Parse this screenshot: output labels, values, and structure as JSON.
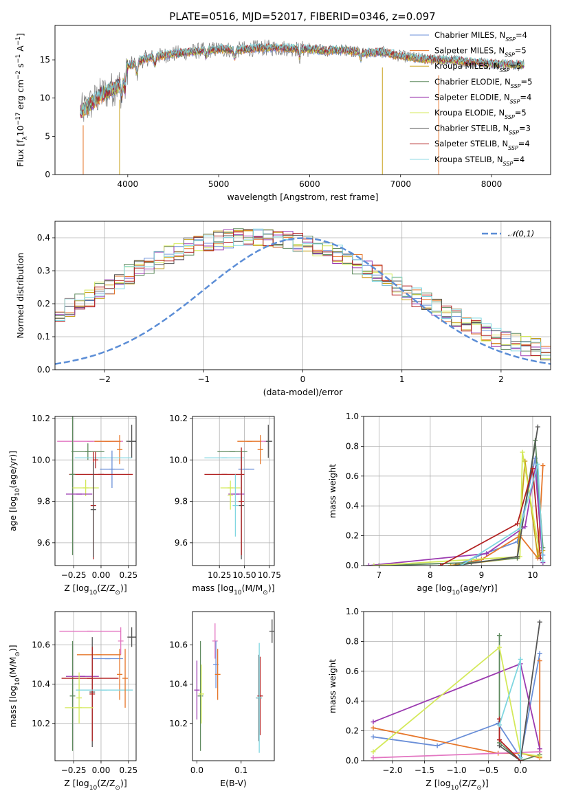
{
  "title": "PLATE=0516, MJD=52017, FIBERID=0346, z=0.097",
  "chart_data": [
    {
      "id": "spectrum",
      "type": "line",
      "xlabel": "wavelength [Angstrom, rest frame]",
      "ylabel": "Flux [fλ10⁻¹⁷ erg cm⁻² s⁻¹ A⁻¹]",
      "xlim": [
        3200,
        8650
      ],
      "ylim": [
        0,
        19.5
      ],
      "xticks": [
        4000,
        5000,
        6000,
        7000,
        8000
      ],
      "yticks": [
        0,
        5,
        10,
        15
      ],
      "grid": false,
      "legend_position": "upper right",
      "continuum": {
        "x": [
          3470,
          3520,
          3600,
          3700,
          3800,
          3900,
          3950,
          4000,
          4100,
          4200,
          4400,
          4600,
          4800,
          5000,
          5200,
          5400,
          5600,
          5800,
          6000,
          6200,
          6400,
          6600,
          6800,
          7000,
          7200,
          7400,
          7600,
          7800,
          8000,
          8200,
          8400
        ],
        "y": [
          8.2,
          8.5,
          9.3,
          10.4,
          11.0,
          11.6,
          12.6,
          14.2,
          14.6,
          15.2,
          15.6,
          15.9,
          16.2,
          16.4,
          16.3,
          16.5,
          16.6,
          16.5,
          16.4,
          16.2,
          16.3,
          15.9,
          16.0,
          15.5,
          15.2,
          15.0,
          14.9,
          14.7,
          14.5,
          14.4,
          14.3
        ]
      },
      "series": [
        {
          "name": "Chabrier MILES, N_SSP=4",
          "color": "#6a8fd8"
        },
        {
          "name": "Salpeter MILES, N_SSP=5",
          "color": "#e6762a"
        },
        {
          "name": "Kroupa MILES, N_SSP=5",
          "color": "#c9a21c"
        },
        {
          "name": "Chabrier ELODIE, N_SSP=5",
          "color": "#5e8a5e"
        },
        {
          "name": "Salpeter ELODIE, N_SSP=4",
          "color": "#9b3ab0"
        },
        {
          "name": "Kroupa ELODIE, N_SSP=5",
          "color": "#d4e95a"
        },
        {
          "name": "Chabrier STELIB, N_SSP=3",
          "color": "#555555"
        },
        {
          "name": "Salpeter STELIB, N_SSP=4",
          "color": "#b22222"
        },
        {
          "name": "Kroupa STELIB, N_SSP=4",
          "color": "#7fd6e0"
        }
      ]
    },
    {
      "id": "residuals",
      "type": "histogram",
      "xlabel": "(data-model)/error",
      "ylabel": "Normed distribution",
      "xlim": [
        -2.5,
        2.5
      ],
      "ylim": [
        0,
        0.45
      ],
      "xticks": [
        -2,
        -1,
        0,
        1,
        2
      ],
      "yticks": [
        0.0,
        0.1,
        0.2,
        0.3,
        0.4
      ],
      "grid": true,
      "legend_position": "upper right",
      "reference": {
        "name": "𝒩(0,1)",
        "color": "#5b8dd6",
        "style": "dashed"
      },
      "bin_width": 0.1,
      "base": [
        0.042,
        0.038,
        0.036,
        0.04,
        0.048,
        0.052,
        0.058,
        0.065,
        0.072,
        0.085,
        0.095,
        0.11,
        0.125,
        0.14,
        0.158,
        0.175,
        0.19,
        0.205,
        0.22,
        0.238,
        0.255,
        0.272,
        0.29,
        0.305,
        0.32,
        0.335,
        0.35,
        0.36,
        0.37,
        0.38,
        0.388,
        0.392,
        0.395,
        0.398,
        0.4,
        0.4,
        0.398,
        0.395,
        0.39,
        0.385,
        0.378,
        0.37,
        0.36,
        0.35,
        0.335,
        0.32,
        0.305,
        0.29,
        0.272,
        0.255,
        0.238,
        0.22,
        0.205,
        0.19,
        0.175,
        0.158,
        0.142,
        0.128,
        0.114,
        0.1,
        0.09,
        0.08,
        0.072,
        0.065,
        0.058,
        0.052,
        0.048,
        0.044,
        0.04,
        0.038,
        0.036,
        0.034,
        0.032,
        0.03,
        0.028,
        0.026,
        0.025,
        0.024,
        0.023,
        0.022
      ]
    },
    {
      "id": "age_vs_Z",
      "type": "errorbar",
      "xlabel": "Z [log₁₀(Z/Z⊙)]",
      "ylabel": "age  [log₁₀(age/yr)]",
      "xlim": [
        -0.42,
        0.32
      ],
      "ylim": [
        9.49,
        10.21
      ],
      "xticks": [
        -0.25,
        0.0,
        0.25
      ],
      "xticklabels": [
        "−0.25",
        "0.00",
        "0.25"
      ],
      "yticks": [
        9.6,
        9.8,
        10.0,
        10.2
      ],
      "grid": true,
      "points": [
        {
          "x": 0.28,
          "y": 10.09,
          "xerr": 0.05,
          "yerr": 0.08,
          "color": "#555555"
        },
        {
          "x": -0.1,
          "y": 10.09,
          "xerr": 0.3,
          "yerr": 0.0,
          "color": "#e377c2"
        },
        {
          "x": 0.06,
          "y": 10.09,
          "xerr": 0.12,
          "yerr": 0.0,
          "color": "#e6762a"
        },
        {
          "x": 0.17,
          "y": 10.05,
          "xerr": 0.0,
          "yerr": 0.07,
          "color": "#e6762a"
        },
        {
          "x": -0.12,
          "y": 10.04,
          "xerr": 0.15,
          "yerr": 0.04,
          "color": "#5e8a5e"
        },
        {
          "x": 0.02,
          "y": 10.01,
          "xerr": 0.26,
          "yerr": 0.0,
          "color": "#7fd6e0"
        },
        {
          "x": -0.05,
          "y": 10.0,
          "xerr": 0.0,
          "yerr": 0.04,
          "color": "#b22222"
        },
        {
          "x": 0.1,
          "y": 9.955,
          "xerr": 0.11,
          "yerr": 0.09,
          "color": "#6a8fd8"
        },
        {
          "x": 0.0,
          "y": 9.93,
          "xerr": 0.29,
          "yerr": 0.0,
          "color": "#b22222"
        },
        {
          "x": -0.26,
          "y": 9.93,
          "xerr": 0.0,
          "yerr": 0.39,
          "color": "#5e8a5e"
        },
        {
          "x": -0.14,
          "y": 9.865,
          "xerr": 0.12,
          "yerr": 0.04,
          "color": "#d4e95a"
        },
        {
          "x": -0.2,
          "y": 9.835,
          "xerr": 0.12,
          "yerr": 0.0,
          "color": "#9b3ab0"
        },
        {
          "x": -0.07,
          "y": 9.78,
          "xerr": 0.0,
          "yerr": 0.26,
          "color": "#b22222"
        },
        {
          "x": -0.07,
          "y": 9.76,
          "xerr": 0.0,
          "yerr": 0.23,
          "color": "#555555"
        }
      ]
    },
    {
      "id": "age_vs_mass",
      "type": "errorbar",
      "xlabel": "mass [log₁₀(M/M⊙)]",
      "ylabel": "",
      "xlim": [
        9.98,
        10.8
      ],
      "ylim": [
        9.49,
        10.21
      ],
      "xticks": [
        10.25,
        10.5,
        10.75
      ],
      "xticklabels": [
        "10.25",
        "10.50",
        "10.75"
      ],
      "yticks": [
        9.6,
        9.8,
        10.0,
        10.2
      ],
      "grid": true,
      "points": [
        {
          "x": 10.74,
          "y": 10.09,
          "xerr": 0.04,
          "yerr": 0.08,
          "color": "#555555"
        },
        {
          "x": 10.69,
          "y": 10.09,
          "xerr": 0.0,
          "yerr": 0.0,
          "color": "#e377c2"
        },
        {
          "x": 10.55,
          "y": 10.09,
          "xerr": 0.12,
          "yerr": 0.0,
          "color": "#e6762a"
        },
        {
          "x": 10.66,
          "y": 10.05,
          "xerr": 0.0,
          "yerr": 0.07,
          "color": "#e6762a"
        },
        {
          "x": 10.38,
          "y": 10.04,
          "xerr": 0.15,
          "yerr": 0.0,
          "color": "#5e8a5e"
        },
        {
          "x": 10.3,
          "y": 10.01,
          "xerr": 0.2,
          "yerr": 0.0,
          "color": "#7fd6e0"
        },
        {
          "x": 10.52,
          "y": 9.955,
          "xerr": 0.08,
          "yerr": 0.0,
          "color": "#6a8fd8"
        },
        {
          "x": 10.3,
          "y": 9.93,
          "xerr": 0.2,
          "yerr": 0.0,
          "color": "#b22222"
        },
        {
          "x": 10.36,
          "y": 9.865,
          "xerr": 0.1,
          "yerr": 0.0,
          "color": "#d4e95a"
        },
        {
          "x": 10.42,
          "y": 9.835,
          "xerr": 0.08,
          "yerr": 0.0,
          "color": "#9b3ab0"
        },
        {
          "x": 10.47,
          "y": 9.78,
          "xerr": 0.0,
          "yerr": 0.26,
          "color": "#555555"
        },
        {
          "x": 10.47,
          "y": 9.8,
          "xerr": 0.0,
          "yerr": 0.26,
          "color": "#b22222"
        },
        {
          "x": 10.36,
          "y": 9.83,
          "xerr": 0.0,
          "yerr": 0.07,
          "color": "#d4e95a"
        },
        {
          "x": 10.41,
          "y": 9.78,
          "xerr": 0.0,
          "yerr": 0.15,
          "color": "#7fd6e0"
        }
      ]
    },
    {
      "id": "weight_vs_age",
      "type": "line",
      "xlabel": "age  [log₁₀(age/yr)]",
      "ylabel": "mass weight",
      "xlim": [
        6.7,
        10.35
      ],
      "ylim": [
        0,
        1
      ],
      "xticks": [
        7,
        8,
        9,
        10
      ],
      "yticks": [
        0.0,
        0.2,
        0.4,
        0.6,
        0.8,
        1.0
      ],
      "grid": true,
      "series": [
        {
          "color": "#6a8fd8",
          "x": [
            8.5,
            8.9,
            9.7,
            10.05,
            10.2
          ],
          "y": [
            0.0,
            0.06,
            0.16,
            0.72,
            0.07
          ]
        },
        {
          "color": "#e6762a",
          "x": [
            8.4,
            9.0,
            9.75,
            10.1,
            10.2
          ],
          "y": [
            0.0,
            0.04,
            0.2,
            0.05,
            0.67
          ]
        },
        {
          "color": "#c9a21c",
          "x": [
            8.4,
            9.7,
            9.85,
            10.1,
            10.2
          ],
          "y": [
            0.0,
            0.05,
            0.7,
            0.06,
            0.1
          ]
        },
        {
          "color": "#5e8a5e",
          "x": [
            7.0,
            8.8,
            9.7,
            10.05,
            10.2
          ],
          "y": [
            0.0,
            0.02,
            0.05,
            0.84,
            0.12
          ]
        },
        {
          "color": "#9b3ab0",
          "x": [
            6.8,
            9.1,
            9.85,
            10.05,
            10.2
          ],
          "y": [
            0.0,
            0.08,
            0.26,
            0.65,
            0.02
          ]
        },
        {
          "color": "#d4e95a",
          "x": [
            6.9,
            9.75,
            9.8,
            10.15
          ],
          "y": [
            0.0,
            0.06,
            0.76,
            0.05
          ]
        },
        {
          "color": "#555555",
          "x": [
            8.5,
            9.7,
            10.1
          ],
          "y": [
            0.0,
            0.06,
            0.93
          ]
        },
        {
          "color": "#b22222",
          "x": [
            8.2,
            9.7,
            10.0,
            10.15
          ],
          "y": [
            0.0,
            0.28,
            0.65,
            0.05
          ]
        },
        {
          "color": "#7fd6e0",
          "x": [
            8.6,
            9.75,
            10.1,
            10.2
          ],
          "y": [
            0.0,
            0.25,
            0.68,
            0.03
          ]
        }
      ]
    },
    {
      "id": "mass_vs_Z",
      "type": "errorbar",
      "xlabel": "Z [log₁₀(Z/Z⊙)]",
      "ylabel": "mass [log₁₀(M/M⊙)]",
      "xlim": [
        -0.42,
        0.32
      ],
      "ylim": [
        10.01,
        10.77
      ],
      "xticks": [
        -0.25,
        0.0,
        0.25
      ],
      "xticklabels": [
        "−0.25",
        "0.00",
        "0.25"
      ],
      "yticks": [
        10.2,
        10.4,
        10.6
      ],
      "grid": true,
      "points": [
        {
          "x": 0.28,
          "y": 10.64,
          "xerr": 0.04,
          "yerr": 0.05,
          "color": "#555555"
        },
        {
          "x": -0.1,
          "y": 10.67,
          "xerr": 0.28,
          "yerr": 0.0,
          "color": "#e377c2"
        },
        {
          "x": 0.18,
          "y": 10.62,
          "xerr": 0.0,
          "yerr": 0.07,
          "color": "#e377c2"
        },
        {
          "x": -0.02,
          "y": 10.55,
          "xerr": 0.2,
          "yerr": 0.0,
          "color": "#e6762a"
        },
        {
          "x": 0.06,
          "y": 10.53,
          "xerr": 0.14,
          "yerr": 0.0,
          "color": "#6a8fd8"
        },
        {
          "x": 0.17,
          "y": 10.45,
          "xerr": 0.0,
          "yerr": 0.13,
          "color": "#e6762a"
        },
        {
          "x": -0.26,
          "y": 10.34,
          "xerr": 0.0,
          "yerr": 0.28,
          "color": "#5e8a5e"
        },
        {
          "x": -0.1,
          "y": 10.43,
          "xerr": 0.26,
          "yerr": 0.0,
          "color": "#b22222"
        },
        {
          "x": -0.17,
          "y": 10.44,
          "xerr": 0.15,
          "yerr": 0.0,
          "color": "#9b3ab0"
        },
        {
          "x": -0.08,
          "y": 10.36,
          "xerr": 0.0,
          "yerr": 0.28,
          "color": "#555555"
        },
        {
          "x": -0.08,
          "y": 10.35,
          "xerr": 0.0,
          "yerr": 0.24,
          "color": "#b22222"
        },
        {
          "x": -0.2,
          "y": 10.28,
          "xerr": 0.13,
          "yerr": 0.0,
          "color": "#d4e95a"
        },
        {
          "x": -0.2,
          "y": 10.33,
          "xerr": 0.0,
          "yerr": 0.13,
          "color": "#d4e95a"
        },
        {
          "x": 0.03,
          "y": 10.37,
          "xerr": 0.26,
          "yerr": 0.0,
          "color": "#7fd6e0"
        },
        {
          "x": 0.22,
          "y": 10.43,
          "xerr": 0.0,
          "yerr": 0.15,
          "color": "#e6762a"
        }
      ]
    },
    {
      "id": "mass_vs_ebv",
      "type": "errorbar",
      "xlabel": "E(B-V)",
      "ylabel": "",
      "xlim": [
        -0.01,
        0.175
      ],
      "ylim": [
        10.01,
        10.77
      ],
      "xticks": [
        0.0,
        0.1
      ],
      "xticklabels": [
        "0.0",
        "0.1"
      ],
      "yticks": [
        10.2,
        10.4,
        10.6
      ],
      "grid": false,
      "points": [
        {
          "x": 0.0,
          "y": 10.37,
          "xerr": 0.0,
          "yerr": 0.15,
          "color": "#9b3ab0"
        },
        {
          "x": 0.008,
          "y": 10.34,
          "xerr": 0.0,
          "yerr": 0.28,
          "color": "#5e8a5e"
        },
        {
          "x": 0.01,
          "y": 10.35,
          "xerr": 0.0,
          "yerr": 0.15,
          "color": "#d4e95a"
        },
        {
          "x": 0.041,
          "y": 10.62,
          "xerr": 0.0,
          "yerr": 0.09,
          "color": "#e377c2"
        },
        {
          "x": 0.043,
          "y": 10.5,
          "xerr": 0.0,
          "yerr": 0.12,
          "color": "#6a8fd8"
        },
        {
          "x": 0.047,
          "y": 10.45,
          "xerr": 0.0,
          "yerr": 0.13,
          "color": "#e6762a"
        },
        {
          "x": 0.14,
          "y": 10.33,
          "xerr": 0.0,
          "yerr": 0.22,
          "color": "#555555"
        },
        {
          "x": 0.143,
          "y": 10.34,
          "xerr": 0.0,
          "yerr": 0.2,
          "color": "#b22222"
        },
        {
          "x": 0.141,
          "y": 10.33,
          "xerr": 0.0,
          "yerr": 0.28,
          "color": "#7fd6e0"
        },
        {
          "x": 0.17,
          "y": 10.67,
          "xerr": 0.0,
          "yerr": 0.06,
          "color": "#555555"
        }
      ]
    },
    {
      "id": "weight_vs_Z",
      "type": "line",
      "xlabel": "Z [log₁₀(Z/Z⊙)]",
      "ylabel": "mass weight",
      "xlim": [
        -2.45,
        0.47
      ],
      "ylim": [
        0,
        1
      ],
      "xticks": [
        -2.0,
        -1.5,
        -1.0,
        -0.5,
        0.0
      ],
      "xticklabels": [
        "−2.0",
        "−1.5",
        "−1.0",
        "−0.5",
        "0.0"
      ],
      "yticks": [
        0.0,
        0.2,
        0.4,
        0.6,
        0.8,
        1.0
      ],
      "grid": true,
      "series": [
        {
          "color": "#6a8fd8",
          "x": [
            -2.3,
            -1.3,
            -0.35,
            0.0,
            0.3
          ],
          "y": [
            0.16,
            0.1,
            0.25,
            0.02,
            0.72
          ]
        },
        {
          "color": "#e6762a",
          "x": [
            -2.3,
            -0.35,
            0.0,
            0.3,
            0.3
          ],
          "y": [
            0.22,
            0.05,
            0.05,
            0.02,
            0.67
          ]
        },
        {
          "color": "#e377c2",
          "x": [
            -2.3,
            0.3,
            0.3
          ],
          "y": [
            0.02,
            0.06,
            0.08
          ]
        },
        {
          "color": "#5e8a5e",
          "x": [
            -0.33,
            -0.33,
            0.0,
            0.3
          ],
          "y": [
            0.84,
            0.12,
            0.0,
            0.04
          ]
        },
        {
          "color": "#9b3ab0",
          "x": [
            -2.3,
            0.0,
            0.3
          ],
          "y": [
            0.26,
            0.65,
            0.08
          ]
        },
        {
          "color": "#d4e95a",
          "x": [
            -2.3,
            -0.33,
            0.0,
            0.3
          ],
          "y": [
            0.06,
            0.76,
            0.05,
            0.03
          ]
        },
        {
          "color": "#555555",
          "x": [
            -0.33,
            0.0,
            0.3
          ],
          "y": [
            0.1,
            0.0,
            0.93
          ]
        },
        {
          "color": "#b22222",
          "x": [
            -0.33,
            -0.33,
            0.0
          ],
          "y": [
            0.28,
            0.14,
            0.0
          ]
        },
        {
          "color": "#7fd6e0",
          "x": [
            -0.33,
            0.0,
            0.0
          ],
          "y": [
            0.24,
            0.68,
            0.02
          ]
        }
      ]
    }
  ]
}
